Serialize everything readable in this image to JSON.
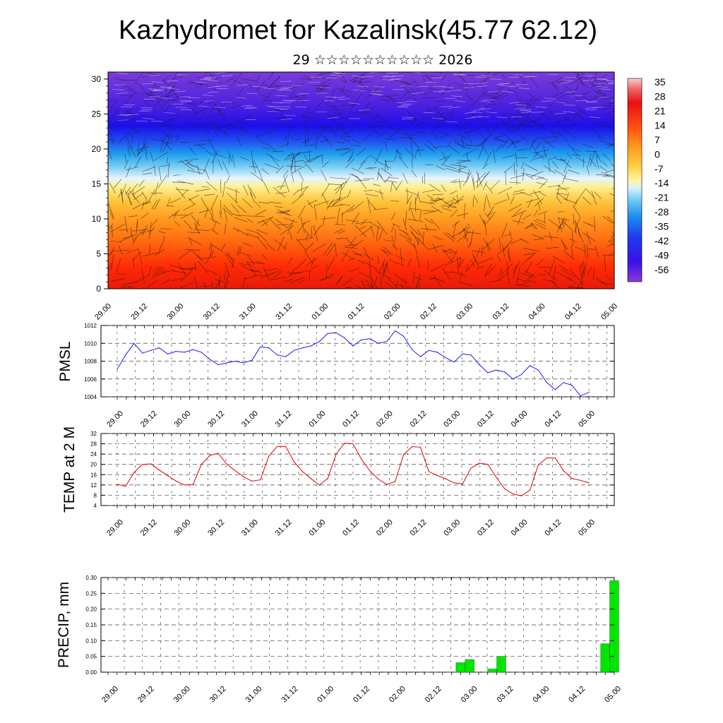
{
  "title": "Kazhydromet for Kazalinsk(45.77 62.12)",
  "subtitle": "29 ☆☆☆☆☆☆☆☆☆☆ 2026",
  "time_labels": [
    "29.00",
    "29.12",
    "30.00",
    "30.12",
    "31.00",
    "31.12",
    "01.00",
    "01.12",
    "02.00",
    "02.12",
    "03.00",
    "03.12",
    "04.00",
    "04.12",
    "05.00"
  ],
  "colors": {
    "pmsl_line": "#1a1aff",
    "temp_line": "#e00000",
    "precip_bar": "#00e600",
    "grid": "#555555"
  },
  "chart_data": [
    {
      "id": "cross-section",
      "type": "heatmap",
      "description_var": "temperature with wind barbs",
      "y_ticks": [
        "0",
        "5",
        "10",
        "15",
        "20",
        "25",
        "30"
      ],
      "ylim": [
        0,
        31
      ],
      "colorbar": {
        "labels": [
          "35",
          "28",
          "21",
          "14",
          "7",
          "0",
          "-7",
          "-14",
          "-21",
          "-28",
          "-35",
          "-42",
          "-49",
          "-56"
        ],
        "range": [
          -63,
          42
        ]
      }
    },
    {
      "id": "pmsl",
      "type": "line",
      "ylabel": "PMSL",
      "ylim": [
        1004,
        1012
      ],
      "y_ticks": [
        "1004",
        "1006",
        "1008",
        "1010",
        "1012"
      ],
      "values": [
        1007.1,
        1008.7,
        1010.0,
        1008.9,
        1009.2,
        1009.5,
        1008.8,
        1009.1,
        1009.0,
        1009.3,
        1009.0,
        1008.2,
        1007.6,
        1007.8,
        1008.0,
        1007.8,
        1008.1,
        1009.6,
        1009.5,
        1008.7,
        1008.5,
        1009.2,
        1009.5,
        1009.7,
        1010.2,
        1011.1,
        1011.2,
        1010.6,
        1009.7,
        1010.4,
        1010.5,
        1010.0,
        1010.2,
        1011.4,
        1010.8,
        1009.3,
        1008.5,
        1009.2,
        1009.0,
        1008.4,
        1007.9,
        1008.8,
        1008.7,
        1007.6,
        1006.7,
        1007.0,
        1006.8,
        1006.0,
        1006.5,
        1007.5,
        1007.0,
        1005.6,
        1004.8,
        1005.6,
        1005.3,
        1004.1,
        1004.5
      ]
    },
    {
      "id": "temp2m",
      "type": "line",
      "ylabel": "TEMP at 2 M",
      "ylim": [
        4,
        32
      ],
      "y_ticks": [
        "4",
        "8",
        "12",
        "16",
        "20",
        "24",
        "28",
        "32"
      ],
      "values": [
        12.3,
        11.5,
        16.9,
        20.0,
        20.2,
        17.8,
        15.6,
        13.5,
        12.0,
        12.2,
        20.0,
        23.5,
        24.3,
        20.1,
        17.6,
        15.2,
        13.5,
        14.0,
        23.2,
        27.0,
        27.0,
        21.0,
        17.2,
        14.5,
        12.0,
        14.5,
        24.0,
        28.3,
        28.0,
        22.0,
        17.5,
        14.3,
        12.2,
        13.3,
        23.8,
        26.9,
        26.7,
        17.2,
        15.7,
        14.4,
        12.8,
        12.4,
        18.5,
        20.5,
        20.0,
        15.0,
        10.5,
        8.5,
        7.8,
        10.0,
        19.8,
        22.5,
        22.5,
        17.5,
        14.5,
        13.8,
        12.8
      ]
    },
    {
      "id": "precip",
      "type": "bar",
      "ylabel": "PRECIP, mm",
      "ylim": [
        0,
        0.3
      ],
      "y_ticks": [
        "0.00",
        "0.05",
        "0.10",
        "0.15",
        "0.20",
        "0.25",
        "0.30"
      ],
      "series": [
        {
          "name": "precip",
          "bars": [
            {
              "t": 39.0,
              "value": 0.03
            },
            {
              "t": 40.0,
              "value": 0.04
            },
            {
              "t": 42.5,
              "value": 0.01
            },
            {
              "t": 43.5,
              "value": 0.05
            },
            {
              "t": 55.0,
              "value": 0.09
            },
            {
              "t": 56.0,
              "value": 0.29
            }
          ]
        }
      ]
    }
  ]
}
